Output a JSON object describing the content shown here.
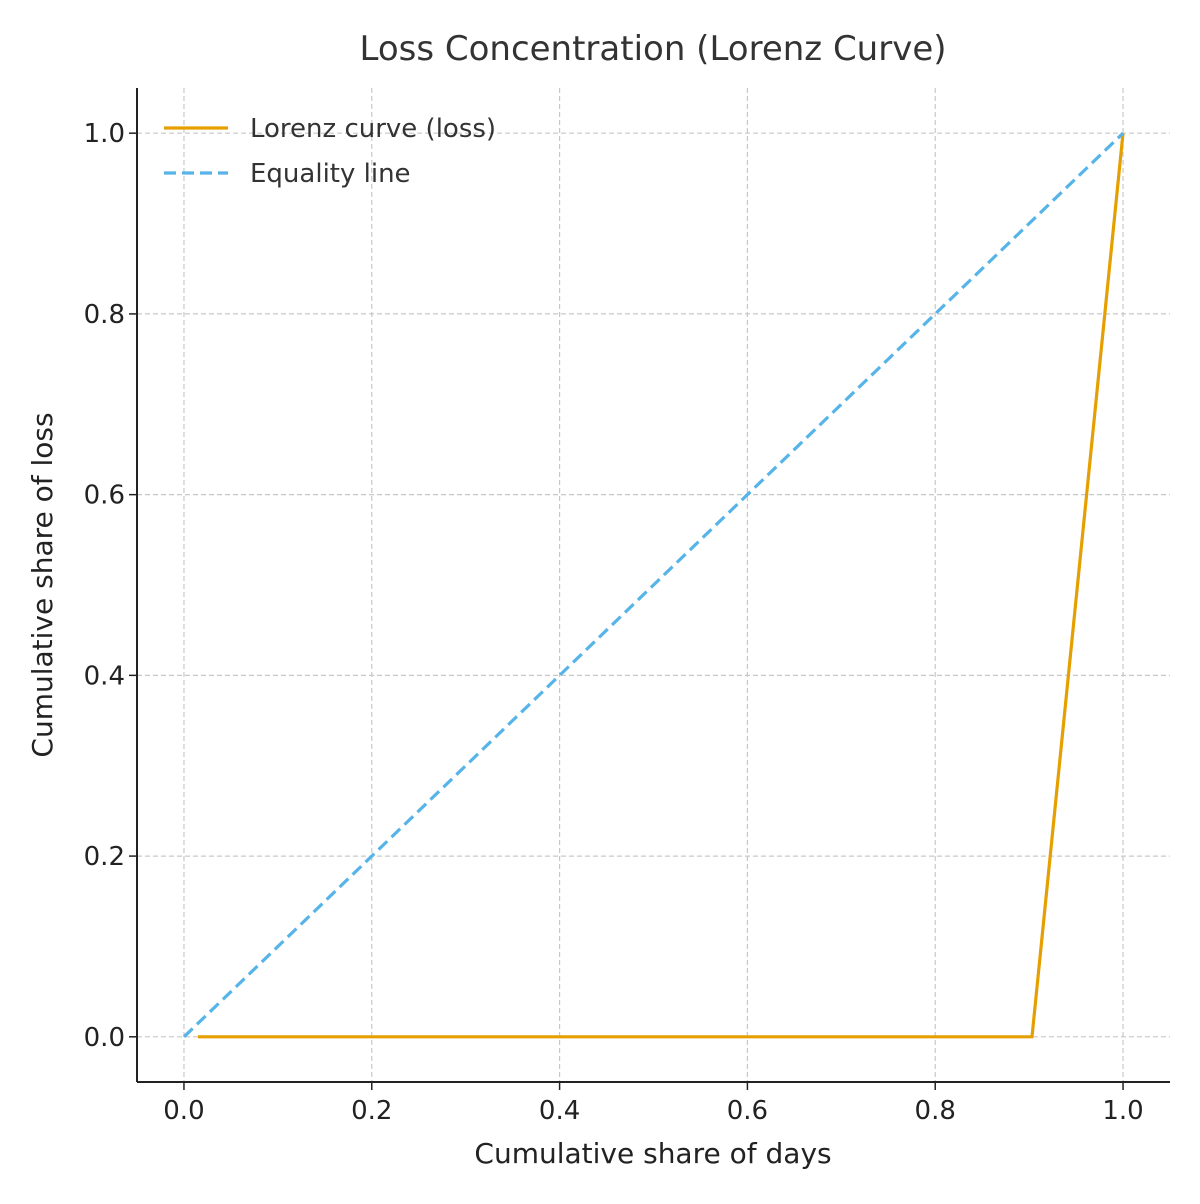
{
  "chart_data": {
    "type": "line",
    "title": "Loss Concentration (Lorenz Curve)",
    "xlabel": "Cumulative share of days",
    "ylabel": "Cumulative share of loss",
    "xlim": [
      -0.05,
      1.05
    ],
    "ylim": [
      -0.05,
      1.05
    ],
    "xticks": [
      0.0,
      0.2,
      0.4,
      0.6,
      0.8,
      1.0
    ],
    "yticks": [
      0.0,
      0.2,
      0.4,
      0.6,
      0.8,
      1.0
    ],
    "xtick_labels": [
      "0.0",
      "0.2",
      "0.4",
      "0.6",
      "0.8",
      "1.0"
    ],
    "ytick_labels": [
      "0.0",
      "0.2",
      "0.4",
      "0.6",
      "0.8",
      "1.0"
    ],
    "grid": true,
    "legend_position": "top-left",
    "series": [
      {
        "name": "Lorenz curve (loss)",
        "color": "#E69F00",
        "style": "solid",
        "x": [
          0.015,
          0.903,
          1.0
        ],
        "y": [
          0.0,
          0.0,
          1.0
        ]
      },
      {
        "name": "Equality line",
        "color": "#56B4E9",
        "style": "dashed",
        "x": [
          0.0,
          1.0
        ],
        "y": [
          0.0,
          1.0
        ]
      }
    ]
  }
}
